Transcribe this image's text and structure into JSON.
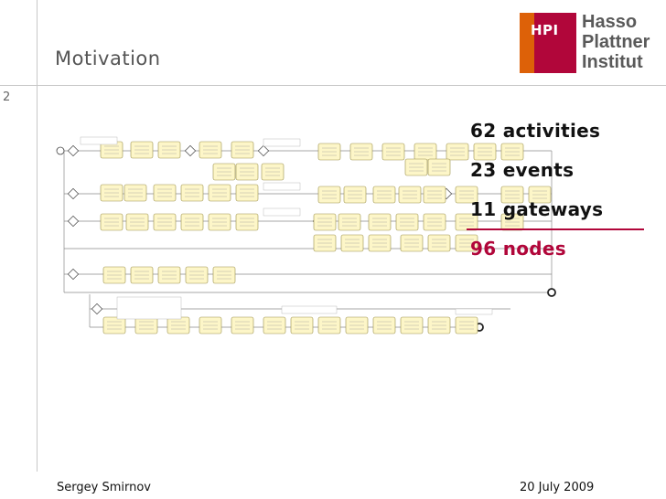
{
  "slide": {
    "title": "Motivation",
    "page_number": "2"
  },
  "logo": {
    "mark": "HPI",
    "lines": [
      "Hasso",
      "Plattner",
      "Institut"
    ]
  },
  "stats": [
    {
      "value": "62",
      "label": "activities"
    },
    {
      "value": "23",
      "label": "events"
    },
    {
      "value": "11",
      "label": "gateways"
    },
    {
      "value": "96",
      "label": "nodes"
    }
  ],
  "stats_text": [
    "62 activities",
    "23 events",
    "11 gateways",
    "96 nodes"
  ],
  "footer": {
    "author": "Sergey Smirnov",
    "date": "20 July 2009"
  },
  "colors": {
    "accent": "#b1063a",
    "logo_orange": "#dd6108",
    "activity_fill": "#fdf6c8",
    "activity_stroke": "#9a8f4a"
  },
  "icons": [
    "process-model-diagram",
    "start-event-icon",
    "end-event-icon",
    "gateway-icon"
  ]
}
